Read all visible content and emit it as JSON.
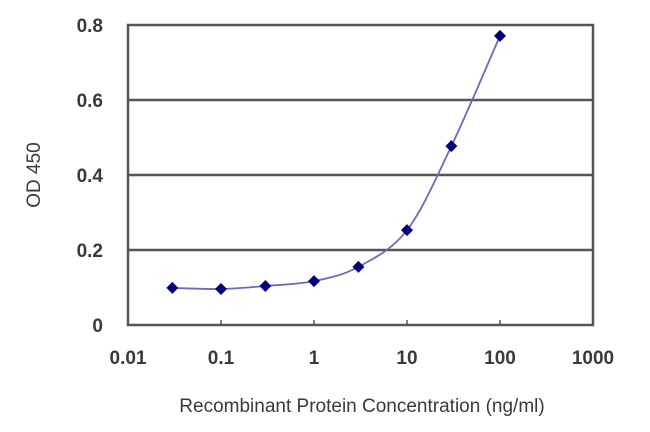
{
  "chart_data": {
    "type": "line",
    "title": "",
    "xlabel": "Recombinant Protein Concentration (ng/ml)",
    "ylabel": "OD 450",
    "xscale": "log",
    "xlim": [
      0.01,
      1000
    ],
    "ylim": [
      0,
      0.8
    ],
    "x_ticks": [
      "0.01",
      "0.1",
      "1",
      "10",
      "100",
      "1000"
    ],
    "y_ticks": [
      "0",
      "0.2",
      "0.4",
      "0.6",
      "0.8"
    ],
    "grid": {
      "horizontal": true,
      "vertical": false
    },
    "legend": null,
    "series": [
      {
        "name": "OD 450",
        "marker": "diamond",
        "line": "smooth",
        "color_marker": "#00007f",
        "color_line": "#6a6ab8",
        "x": [
          0.03,
          0.1,
          0.3,
          1,
          3,
          10,
          30,
          100
        ],
        "values": [
          0.099,
          0.096,
          0.104,
          0.117,
          0.155,
          0.253,
          0.477,
          0.771
        ]
      }
    ]
  },
  "colors": {
    "axis": "#555555",
    "grid": "#555555",
    "text": "#3a3a3a"
  }
}
